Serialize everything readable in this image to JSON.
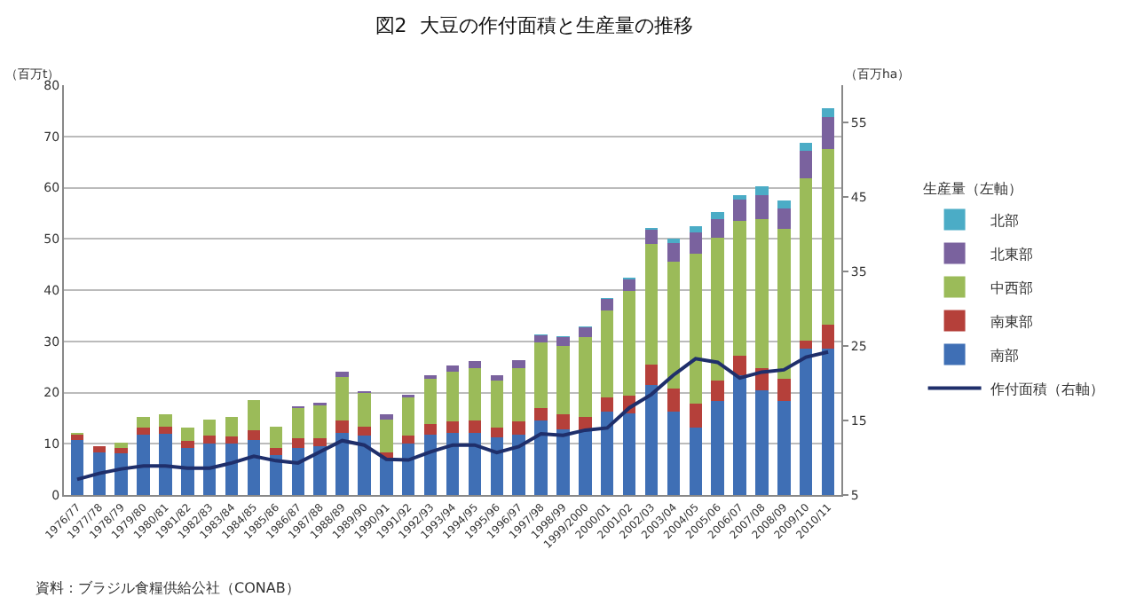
{
  "chart_data": {
    "type": "bar",
    "stacked": true,
    "title": "図2  大豆の作付面積と生産量の推移",
    "ylabel": "（百万t）",
    "y2label": "（百万ha）",
    "legend_title": "生産量（左軸）",
    "categories": [
      "1976/77",
      "1977/78",
      "1978/79",
      "1979/80",
      "1980/81",
      "1981/82",
      "1982/83",
      "1983/84",
      "1984/85",
      "1985/86",
      "1986/87",
      "1987/88",
      "1988/89",
      "1989/90",
      "1990/91",
      "1991/92",
      "1992/93",
      "1993/94",
      "1994/95",
      "1995/96",
      "1996/97",
      "1997/98",
      "1998/99",
      "1999/2000",
      "2000/01",
      "2001/02",
      "2002/03",
      "2003/04",
      "2004/05",
      "2005/06",
      "2006/07",
      "2007/08",
      "2008/09",
      "2009/10",
      "2010/11"
    ],
    "series": [
      {
        "name": "南部",
        "color": "#3f6fb5",
        "values": [
          10.8,
          8.4,
          8.2,
          11.8,
          12,
          9.1,
          10,
          10,
          10.8,
          7.8,
          9.2,
          9.5,
          12.2,
          11.6,
          7.3,
          10,
          11.8,
          12.2,
          12.2,
          11.3,
          11.8,
          14.5,
          12.9,
          12.7,
          16.2,
          15.9,
          21.5,
          16.2,
          13.2,
          18.3,
          23.4,
          20.5,
          18.4,
          28.5,
          28.5
        ]
      },
      {
        "name": "南東部",
        "color": "#b5403a",
        "values": [
          1,
          1.1,
          0.9,
          1.4,
          1.4,
          1.4,
          1.6,
          1.4,
          1.8,
          1.4,
          1.9,
          1.5,
          2.3,
          1.8,
          1.1,
          1.6,
          2,
          2.1,
          2.3,
          1.9,
          2.5,
          2.5,
          2.8,
          2.5,
          2.9,
          3.5,
          3.9,
          4.6,
          4.6,
          4.1,
          3.8,
          4.3,
          4.2,
          1.7,
          4.8
        ]
      },
      {
        "name": "中西部",
        "color": "#9bbb59",
        "values": [
          0.3,
          null,
          1.2,
          2,
          2.3,
          2.6,
          3.1,
          3.9,
          5.9,
          4.2,
          5.9,
          6.5,
          8.6,
          6.5,
          6.4,
          7.5,
          8.8,
          9.7,
          10.3,
          9.2,
          10.4,
          12.7,
          13.4,
          15.6,
          17,
          20.4,
          23.6,
          24.7,
          29.3,
          27.9,
          26.3,
          29,
          29.3,
          31.6,
          34.2
        ]
      },
      {
        "name": "北東部",
        "color": "#7a629e",
        "values": [
          0.1,
          0,
          0,
          0,
          0,
          0,
          0,
          0,
          null,
          0,
          0.3,
          0.5,
          1,
          0.4,
          0.9,
          0.5,
          0.8,
          1.3,
          1.3,
          1,
          1.6,
          1.5,
          1.7,
          1.9,
          2.1,
          2.3,
          2.8,
          3.7,
          4.1,
          3.6,
          4.1,
          4.8,
          4,
          5.4,
          6.2
        ]
      },
      {
        "name": "北部",
        "color": "#4bacc6",
        "values": [
          0,
          0,
          0,
          0,
          0,
          0,
          0,
          0,
          0,
          0,
          0,
          0,
          0,
          0,
          0,
          0,
          0,
          0,
          0,
          0,
          0,
          0.2,
          0.2,
          0.2,
          0.3,
          0.3,
          0.4,
          0.8,
          1.3,
          1.3,
          0.9,
          1.6,
          1.6,
          1.6,
          1.8
        ]
      },
      {
        "name": "作付面積（右軸）",
        "type": "line",
        "axis": "y2",
        "color": "#1f2f6b",
        "values": [
          7.1,
          7.9,
          8.5,
          8.9,
          8.9,
          8.6,
          8.6,
          9.3,
          10.2,
          9.6,
          9.3,
          10.8,
          12.3,
          11.7,
          9.8,
          9.7,
          10.8,
          11.7,
          11.7,
          10.7,
          11.5,
          13.2,
          13,
          13.7,
          14,
          16.7,
          18.5,
          21.1,
          23.3,
          22.8,
          20.7,
          21.5,
          21.8,
          23.5,
          24.2
        ]
      }
    ],
    "ylim": [
      0,
      80
    ],
    "yticks": [
      0,
      10,
      20,
      30,
      40,
      50,
      60,
      70,
      80
    ],
    "y2lim": [
      5,
      60
    ],
    "y2ticks": [
      5,
      15,
      25,
      35,
      45,
      55
    ],
    "grid": "y",
    "legend": "right",
    "annotations": [
      "資料：ブラジル食糧供給公社（CONAB）"
    ]
  }
}
